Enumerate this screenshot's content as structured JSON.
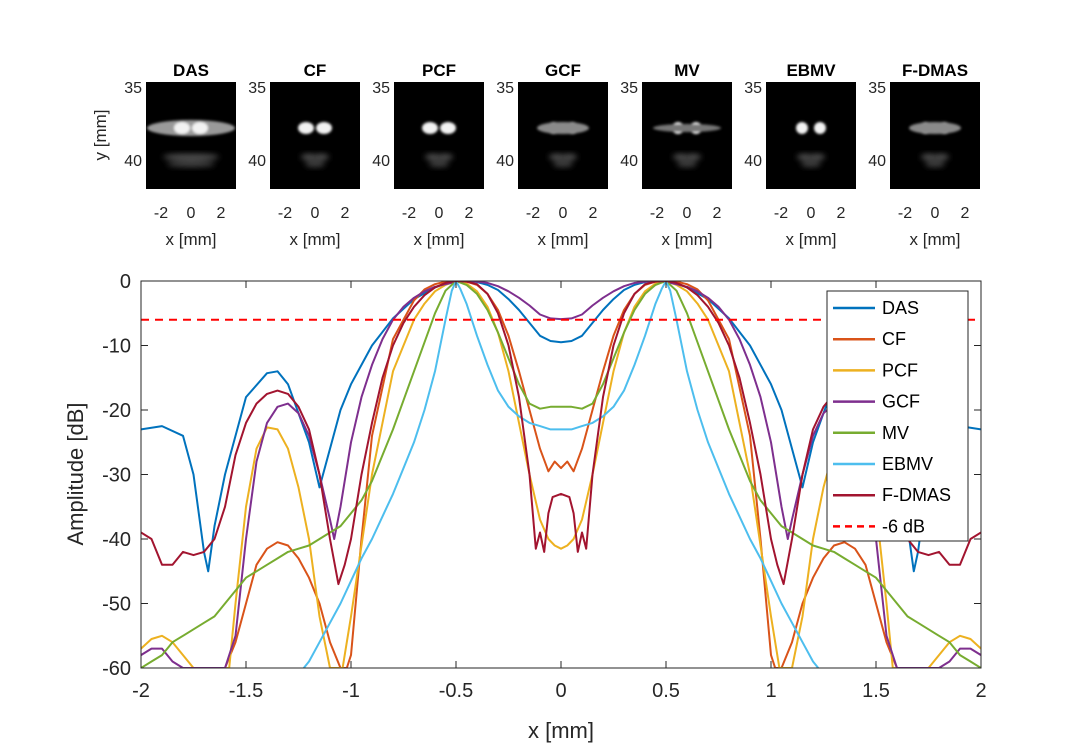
{
  "chart_data": [
    {
      "type": "heatmap",
      "panels": [
        {
          "title": "DAS",
          "y_ticks": [
            "35",
            "40"
          ],
          "x_ticks": [
            "-2",
            "0",
            "2"
          ],
          "xlabel": "x [mm]",
          "ylabel": "y [mm]"
        },
        {
          "title": "CF",
          "y_ticks": [
            "35",
            "40"
          ],
          "x_ticks": [
            "-2",
            "0",
            "2"
          ],
          "xlabel": "x [mm]"
        },
        {
          "title": "PCF",
          "y_ticks": [
            "35",
            "40"
          ],
          "x_ticks": [
            "-2",
            "0",
            "2"
          ],
          "xlabel": "x [mm]"
        },
        {
          "title": "GCF",
          "y_ticks": [
            "35",
            "40"
          ],
          "x_ticks": [
            "-2",
            "0",
            "2"
          ],
          "xlabel": "x [mm]"
        },
        {
          "title": "MV",
          "y_ticks": [
            "35",
            "40"
          ],
          "x_ticks": [
            "-2",
            "0",
            "2"
          ],
          "xlabel": "x [mm]"
        },
        {
          "title": "EBMV",
          "y_ticks": [
            "35",
            "40"
          ],
          "x_ticks": [
            "-2",
            "0",
            "2"
          ],
          "xlabel": "x [mm]"
        },
        {
          "title": "F-DMAS",
          "y_ticks": [
            "35",
            "40"
          ],
          "x_ticks": [
            "-2",
            "0",
            "2"
          ],
          "xlabel": "x [mm]"
        }
      ]
    },
    {
      "type": "line",
      "xlabel": "x [mm]",
      "ylabel": "Amplitude [dB]",
      "xlim": [
        -2,
        2
      ],
      "ylim": [
        -60,
        0
      ],
      "x_ticks": [
        "-2",
        "-1.5",
        "-1",
        "-0.5",
        "0",
        "0.5",
        "1",
        "1.5",
        "2"
      ],
      "y_ticks": [
        "0",
        "-10",
        "-20",
        "-30",
        "-40",
        "-50",
        "-60"
      ],
      "legend_position": "top-right",
      "series": [
        {
          "name": "DAS",
          "color": "#0072BD",
          "x": [
            0,
            0.05,
            0.1,
            0.15,
            0.2,
            0.25,
            0.3,
            0.35,
            0.4,
            0.45,
            0.5,
            0.55,
            0.6,
            0.7,
            0.8,
            0.9,
            1.0,
            1.05,
            1.1,
            1.15,
            1.2,
            1.3,
            1.35,
            1.4,
            1.5,
            1.6,
            1.65,
            1.68,
            1.7,
            1.75,
            1.8,
            1.9,
            2.0
          ],
          "y": [
            -9.5,
            -9.3,
            -8.5,
            -6.5,
            -4.5,
            -2.8,
            -1.4,
            -0.6,
            -0.15,
            0,
            -0.1,
            -0.4,
            -1.0,
            -2.8,
            -5.8,
            -10,
            -16,
            -20,
            -26,
            -32,
            -25,
            -16,
            -14,
            -14.3,
            -18,
            -30,
            -38,
            -45,
            -42,
            -30,
            -24,
            -22.5,
            -23
          ]
        },
        {
          "name": "CF",
          "color": "#D95319",
          "x": [
            0,
            0.03,
            0.06,
            0.1,
            0.15,
            0.2,
            0.25,
            0.3,
            0.35,
            0.4,
            0.45,
            0.5,
            0.55,
            0.6,
            0.65,
            0.7,
            0.8,
            0.9,
            0.95,
            1.0,
            1.02,
            1.05,
            1.1,
            1.15,
            1.2,
            1.25,
            1.3,
            1.35,
            1.4,
            1.45,
            1.5,
            1.55,
            1.6,
            1.65,
            1.7
          ],
          "y": [
            -29,
            -28,
            -29.5,
            -26,
            -20,
            -14,
            -8.5,
            -4.5,
            -2,
            -0.6,
            -0.1,
            0,
            -0.1,
            -0.5,
            -1.3,
            -3,
            -9,
            -24,
            -40,
            -58,
            -60,
            -60,
            -56,
            -50,
            -46,
            -43,
            -41,
            -40.5,
            -41.5,
            -44,
            -50,
            -56,
            -60,
            -60,
            -60
          ]
        },
        {
          "name": "PCF",
          "color": "#EDB120",
          "x": [
            0,
            0.03,
            0.06,
            0.1,
            0.15,
            0.2,
            0.25,
            0.3,
            0.35,
            0.4,
            0.45,
            0.5,
            0.55,
            0.6,
            0.65,
            0.7,
            0.8,
            0.9,
            1.0,
            1.04,
            1.08,
            1.1,
            1.15,
            1.2,
            1.25,
            1.3,
            1.35,
            1.4,
            1.45,
            1.5,
            1.55,
            1.58,
            1.65,
            1.7,
            1.75,
            1.8,
            1.85,
            1.9,
            1.95,
            2.0
          ],
          "y": [
            -41.5,
            -41,
            -40,
            -37,
            -30,
            -22,
            -14,
            -8,
            -4,
            -1.6,
            -0.4,
            0,
            -0.6,
            -1.6,
            -3.5,
            -6,
            -14,
            -30,
            -52,
            -60,
            -60,
            -60,
            -52,
            -40,
            -32,
            -26,
            -23,
            -22.7,
            -26,
            -35,
            -50,
            -60,
            -60,
            -60,
            -60,
            -58,
            -56,
            -55,
            -55.5,
            -57
          ]
        },
        {
          "name": "GCF",
          "color": "#7E2F8E",
          "x": [
            0,
            0.05,
            0.1,
            0.15,
            0.2,
            0.25,
            0.3,
            0.35,
            0.4,
            0.45,
            0.5,
            0.55,
            0.6,
            0.65,
            0.7,
            0.75,
            0.8,
            0.85,
            0.9,
            0.95,
            1.0,
            1.05,
            1.08,
            1.1,
            1.15,
            1.2,
            1.25,
            1.3,
            1.35,
            1.4,
            1.45,
            1.5,
            1.55,
            1.6,
            1.65,
            1.7,
            1.75,
            1.8,
            1.85,
            1.9,
            1.95,
            2.0
          ],
          "y": [
            -5.9,
            -5.8,
            -5.2,
            -3.8,
            -2.6,
            -1.6,
            -0.8,
            -0.3,
            -0.1,
            0,
            -0.15,
            -0.5,
            -0.9,
            -1.6,
            -2.6,
            -4,
            -6,
            -9,
            -13,
            -18,
            -25,
            -35,
            -40,
            -37,
            -30,
            -24,
            -20.5,
            -19,
            -19.5,
            -22,
            -28,
            -40,
            -55,
            -60,
            -60,
            -60,
            -60,
            -60,
            -59,
            -57,
            -57,
            -58
          ]
        },
        {
          "name": "MV",
          "color": "#77AC30",
          "x": [
            0,
            0.05,
            0.1,
            0.15,
            0.2,
            0.25,
            0.3,
            0.35,
            0.4,
            0.45,
            0.5,
            0.55,
            0.6,
            0.65,
            0.7,
            0.75,
            0.8,
            0.85,
            0.9,
            0.95,
            1.0,
            1.05,
            1.1,
            1.15,
            1.2,
            1.25,
            1.3,
            1.35,
            1.4,
            1.45,
            1.5,
            1.55,
            1.6,
            1.65,
            1.7,
            1.75,
            1.8,
            1.85,
            1.9,
            1.95,
            2.0
          ],
          "y": [
            -19.5,
            -19.5,
            -19.8,
            -19,
            -16,
            -12,
            -8,
            -4.5,
            -2,
            -0.6,
            0,
            -1.5,
            -5,
            -9.5,
            -14,
            -18.5,
            -23,
            -27,
            -31,
            -34,
            -36,
            -38,
            -39,
            -40,
            -41,
            -41.5,
            -42,
            -43,
            -44,
            -45,
            -46,
            -48,
            -50,
            -52,
            -53,
            -54,
            -55,
            -56,
            -58,
            -59,
            -60
          ]
        },
        {
          "name": "EBMV",
          "color": "#4DBEEE",
          "x": [
            0,
            0.05,
            0.1,
            0.15,
            0.2,
            0.25,
            0.3,
            0.35,
            0.4,
            0.45,
            0.48,
            0.5,
            0.52,
            0.55,
            0.6,
            0.65,
            0.7,
            0.75,
            0.8,
            0.85,
            0.9,
            0.95,
            1.0,
            1.05,
            1.1,
            1.15,
            1.2,
            1.25
          ],
          "y": [
            -23,
            -23,
            -22.5,
            -22,
            -21,
            -19.5,
            -17,
            -13,
            -8.5,
            -3.5,
            -1.2,
            0,
            -1.5,
            -6,
            -14,
            -20,
            -25,
            -29,
            -33,
            -36.5,
            -40,
            -43,
            -46.5,
            -50,
            -53,
            -56,
            -59,
            -61
          ]
        },
        {
          "name": "F-DMAS",
          "color": "#A2142F",
          "x": [
            0,
            0.04,
            0.06,
            0.08,
            0.1,
            0.12,
            0.15,
            0.2,
            0.25,
            0.3,
            0.35,
            0.4,
            0.45,
            0.5,
            0.55,
            0.6,
            0.65,
            0.7,
            0.75,
            0.8,
            0.85,
            0.9,
            0.95,
            1.0,
            1.03,
            1.06,
            1.1,
            1.15,
            1.2,
            1.25,
            1.3,
            1.35,
            1.4,
            1.45,
            1.5,
            1.55,
            1.6,
            1.65,
            1.7,
            1.75,
            1.8,
            1.85,
            1.9,
            1.95,
            2.0
          ],
          "y": [
            -33,
            -33.5,
            -36,
            -42,
            -39,
            -41.5,
            -30,
            -18,
            -10,
            -5,
            -2,
            -0.5,
            -0.1,
            0,
            -0.3,
            -1,
            -2.2,
            -4,
            -6.5,
            -10,
            -15,
            -22,
            -30,
            -40,
            -44,
            -47,
            -40,
            -30,
            -23,
            -19.5,
            -17.5,
            -17,
            -17.5,
            -19,
            -22,
            -27,
            -35,
            -40,
            -42,
            -42.5,
            -42,
            -44,
            -44,
            -40,
            -39
          ]
        },
        {
          "name": "-6 dB",
          "color": "#FF0000",
          "style": "dashed",
          "x": [
            -2,
            2
          ],
          "y": [
            -6,
            -6
          ]
        }
      ]
    }
  ]
}
